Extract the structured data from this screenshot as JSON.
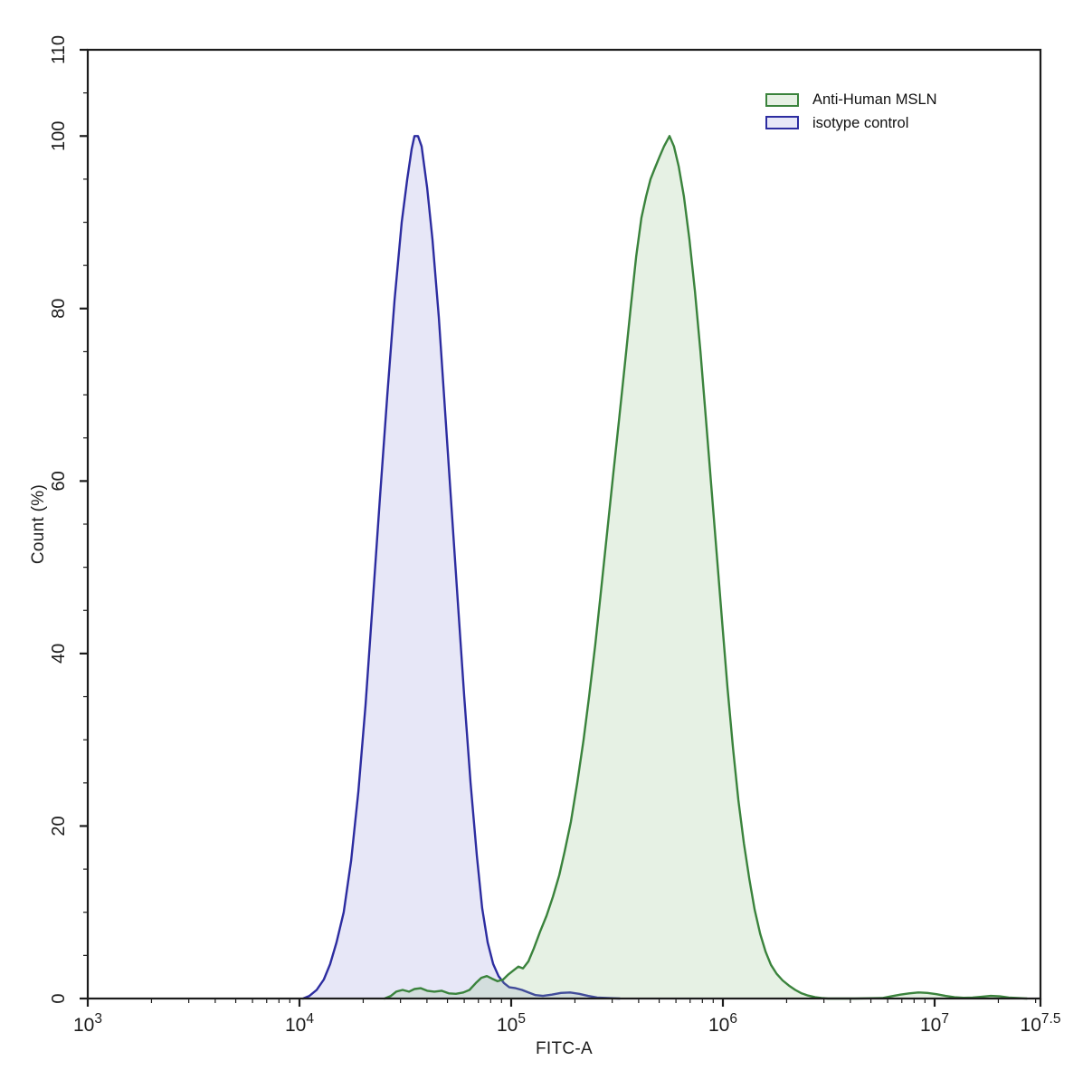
{
  "figure": {
    "xlabel": "FITC-A",
    "ylabel": "Count  (%)"
  },
  "legend": {
    "position": "top-right-inside",
    "entries": [
      {
        "label": "Anti-Human MSLN",
        "stroke": "#3a833c",
        "fill": "rgba(140,190,130,0.22)"
      },
      {
        "label": "isotype control",
        "stroke": "#2c2ca0",
        "fill": "rgba(120,120,210,0.18)"
      }
    ]
  },
  "chart_data": {
    "type": "area",
    "subtype": "flow-cytometry-overlay-histogram",
    "title": "",
    "xlabel": "FITC-A",
    "ylabel": "Count  (%)",
    "x_scale": "log10",
    "xlim_log10": [
      3,
      7.5
    ],
    "ylim": [
      0,
      110
    ],
    "grid": false,
    "frame": true,
    "axis_color": "#1c1c1c",
    "x_major_ticks": [
      {
        "log10": 3,
        "base": "10",
        "exp": "3"
      },
      {
        "log10": 4,
        "base": "10",
        "exp": "4"
      },
      {
        "log10": 5,
        "base": "10",
        "exp": "5"
      },
      {
        "log10": 6,
        "base": "10",
        "exp": "6"
      },
      {
        "log10": 7,
        "base": "10",
        "exp": "7"
      },
      {
        "log10": 7.5,
        "base": "10",
        "exp": "7.5"
      }
    ],
    "x_minor_ticks_per_decade": [
      2,
      3,
      4,
      5,
      6,
      7,
      8,
      9
    ],
    "y_labeled_ticks": [
      {
        "value": 0,
        "label": "0"
      },
      {
        "value": 20,
        "label": "20"
      },
      {
        "value": 40,
        "label": "40"
      },
      {
        "value": 60,
        "label": "60"
      },
      {
        "value": 80,
        "label": "80"
      },
      {
        "value": 100,
        "label": "100"
      },
      {
        "value": 110,
        "label": "110"
      }
    ],
    "y_minor_tick_step": 5,
    "legend_position": "top-right-inside",
    "series": [
      {
        "name": "Anti-Human MSLN",
        "stroke": "#3a833c",
        "fill": "rgba(140,190,130,0.22)",
        "peak_log10": 5.748,
        "peak_percent": 100,
        "points_log10_percent": [
          [
            4.402,
            0
          ],
          [
            4.432,
            0.3
          ],
          [
            4.457,
            0.8
          ],
          [
            4.487,
            1.0
          ],
          [
            4.517,
            0.8
          ],
          [
            4.543,
            1.1
          ],
          [
            4.573,
            1.2
          ],
          [
            4.603,
            0.9
          ],
          [
            4.637,
            0.8
          ],
          [
            4.671,
            0.9
          ],
          [
            4.705,
            0.6
          ],
          [
            4.739,
            0.55
          ],
          [
            4.774,
            0.7
          ],
          [
            4.803,
            1.0
          ],
          [
            4.833,
            1.8
          ],
          [
            4.859,
            2.4
          ],
          [
            4.885,
            2.6
          ],
          [
            4.91,
            2.3
          ],
          [
            4.936,
            2.0
          ],
          [
            4.962,
            2.2
          ],
          [
            4.987,
            2.8
          ],
          [
            5.013,
            3.3
          ],
          [
            5.034,
            3.7
          ],
          [
            5.056,
            3.5
          ],
          [
            5.081,
            4.3
          ],
          [
            5.107,
            5.8
          ],
          [
            5.137,
            7.8
          ],
          [
            5.167,
            9.6
          ],
          [
            5.197,
            11.8
          ],
          [
            5.227,
            14.3
          ],
          [
            5.252,
            17
          ],
          [
            5.282,
            20.5
          ],
          [
            5.312,
            25
          ],
          [
            5.342,
            30
          ],
          [
            5.368,
            35
          ],
          [
            5.397,
            41
          ],
          [
            5.423,
            47
          ],
          [
            5.453,
            54
          ],
          [
            5.483,
            61
          ],
          [
            5.509,
            67
          ],
          [
            5.539,
            74
          ],
          [
            5.564,
            80
          ],
          [
            5.59,
            86
          ],
          [
            5.615,
            90.5
          ],
          [
            5.637,
            93
          ],
          [
            5.658,
            95
          ],
          [
            5.679,
            96.3
          ],
          [
            5.701,
            97.6
          ],
          [
            5.722,
            98.8
          ],
          [
            5.748,
            100
          ],
          [
            5.769,
            98.8
          ],
          [
            5.791,
            96.5
          ],
          [
            5.816,
            93
          ],
          [
            5.842,
            88
          ],
          [
            5.868,
            82
          ],
          [
            5.894,
            75
          ],
          [
            5.919,
            67.5
          ],
          [
            5.945,
            59.5
          ],
          [
            5.971,
            51.5
          ],
          [
            5.997,
            43.5
          ],
          [
            6.022,
            36
          ],
          [
            6.048,
            29
          ],
          [
            6.073,
            23
          ],
          [
            6.099,
            18
          ],
          [
            6.125,
            13.8
          ],
          [
            6.15,
            10.3
          ],
          [
            6.176,
            7.5
          ],
          [
            6.202,
            5.4
          ],
          [
            6.227,
            3.9
          ],
          [
            6.253,
            2.9
          ],
          [
            6.282,
            2.1
          ],
          [
            6.312,
            1.5
          ],
          [
            6.342,
            1.0
          ],
          [
            6.372,
            0.6
          ],
          [
            6.402,
            0.35
          ],
          [
            6.436,
            0.15
          ],
          [
            6.466,
            0.05
          ],
          [
            6.496,
            0
          ],
          [
            6.624,
            0
          ],
          [
            6.752,
            0.05
          ],
          [
            6.795,
            0.25
          ],
          [
            6.838,
            0.45
          ],
          [
            6.88,
            0.6
          ],
          [
            6.923,
            0.7
          ],
          [
            6.966,
            0.65
          ],
          [
            7.009,
            0.5
          ],
          [
            7.051,
            0.3
          ],
          [
            7.094,
            0.15
          ],
          [
            7.137,
            0.08
          ],
          [
            7.179,
            0.1
          ],
          [
            7.222,
            0.2
          ],
          [
            7.265,
            0.3
          ],
          [
            7.308,
            0.25
          ],
          [
            7.35,
            0.12
          ],
          [
            7.393,
            0.05
          ],
          [
            7.436,
            0
          ]
        ]
      },
      {
        "name": "isotype control",
        "stroke": "#2c2ca0",
        "fill": "rgba(120,120,210,0.18)",
        "peak_log10": 4.55,
        "peak_percent": 100,
        "points_log10_percent": [
          [
            4.017,
            0
          ],
          [
            4.047,
            0.3
          ],
          [
            4.081,
            1
          ],
          [
            4.115,
            2.2
          ],
          [
            4.145,
            4
          ],
          [
            4.175,
            6.5
          ],
          [
            4.209,
            10
          ],
          [
            4.244,
            16
          ],
          [
            4.278,
            24
          ],
          [
            4.312,
            34
          ],
          [
            4.346,
            46
          ],
          [
            4.38,
            58
          ],
          [
            4.415,
            70
          ],
          [
            4.449,
            81
          ],
          [
            4.483,
            90
          ],
          [
            4.509,
            95
          ],
          [
            4.53,
            98.5
          ],
          [
            4.543,
            100
          ],
          [
            4.56,
            100
          ],
          [
            4.577,
            98.8
          ],
          [
            4.603,
            94
          ],
          [
            4.628,
            88
          ],
          [
            4.658,
            79
          ],
          [
            4.688,
            68
          ],
          [
            4.718,
            57
          ],
          [
            4.748,
            46
          ],
          [
            4.778,
            35
          ],
          [
            4.808,
            25
          ],
          [
            4.838,
            16.5
          ],
          [
            4.863,
            10.5
          ],
          [
            4.889,
            6.5
          ],
          [
            4.915,
            4
          ],
          [
            4.94,
            2.6
          ],
          [
            4.966,
            1.8
          ],
          [
            4.991,
            1.3
          ],
          [
            5.021,
            1.2
          ],
          [
            5.051,
            1.0
          ],
          [
            5.081,
            0.7
          ],
          [
            5.115,
            0.4
          ],
          [
            5.15,
            0.3
          ],
          [
            5.192,
            0.45
          ],
          [
            5.235,
            0.65
          ],
          [
            5.278,
            0.7
          ],
          [
            5.321,
            0.55
          ],
          [
            5.363,
            0.3
          ],
          [
            5.406,
            0.12
          ],
          [
            5.457,
            0.05
          ],
          [
            5.513,
            0
          ]
        ]
      }
    ]
  }
}
